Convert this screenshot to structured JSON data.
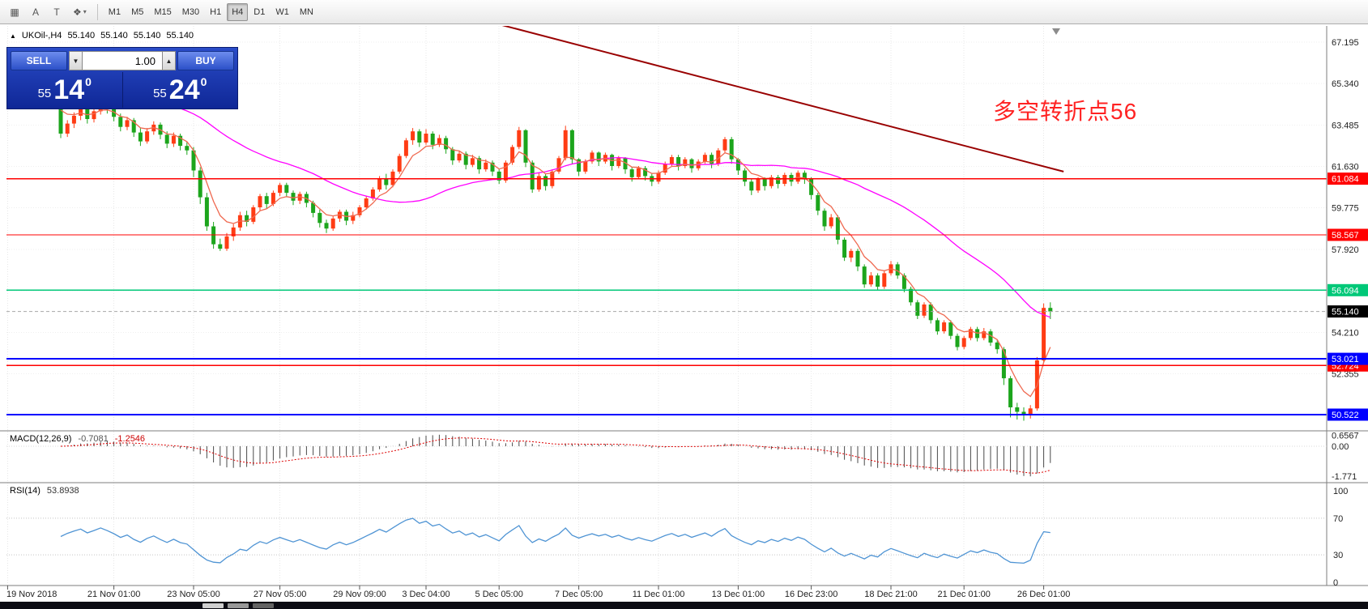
{
  "toolbar": {
    "tools": [
      {
        "name": "templates",
        "glyph": "▦"
      },
      {
        "name": "text",
        "glyph": "A"
      },
      {
        "name": "label",
        "glyph": "T"
      },
      {
        "name": "objects",
        "glyph": "❖"
      }
    ],
    "objects_dropdown_icon": "▾",
    "timeframes": [
      "M1",
      "M5",
      "M15",
      "M30",
      "H1",
      "H4",
      "D1",
      "W1",
      "MN"
    ],
    "active_timeframe": "H4"
  },
  "chart_header": {
    "collapse_icon": "▲",
    "symbol": "UKOil-,H4",
    "open": "55.140",
    "high": "55.140",
    "low": "55.140",
    "close": "55.140"
  },
  "trade_panel": {
    "sell_label": "SELL",
    "buy_label": "BUY",
    "volume": "1.00",
    "volume_down_icon": "▼",
    "volume_up_icon": "▲",
    "sell_price": {
      "small": "55",
      "big": "14",
      "sup": "0"
    },
    "buy_price": {
      "small": "55",
      "big": "24",
      "sup": "0"
    }
  },
  "annotation": {
    "text": "多空转折点56",
    "color": "#ff2222"
  },
  "price_axis": {
    "labels": [
      "67.195",
      "65.340",
      "63.485",
      "61.630",
      "59.775",
      "57.920",
      "56.065",
      "54.210",
      "52.355",
      "50.500"
    ]
  },
  "current_price": {
    "value": "55.140",
    "color": "#000000"
  },
  "levels": [
    {
      "value": "61.084",
      "color": "#ff0000"
    },
    {
      "value": "58.567",
      "color": "#ff0000"
    },
    {
      "value": "56.094",
      "color": "#00c878"
    },
    {
      "value": "52.724",
      "color": "#ff0000"
    },
    {
      "value": "53.021",
      "color": "#0000ff"
    },
    {
      "value": "50.522",
      "color": "#0000ff"
    }
  ],
  "date_axis": [
    {
      "label": "19 Nov 2018",
      "i": -8
    },
    {
      "label": "21 Nov 01:00",
      "i": 8
    },
    {
      "label": "23 Nov 05:00",
      "i": 20
    },
    {
      "label": "27 Nov 05:00",
      "i": 33
    },
    {
      "label": "29 Nov 09:00",
      "i": 45
    },
    {
      "label": "3 Dec 04:00",
      "i": 55
    },
    {
      "label": "5 Dec 05:00",
      "i": 66
    },
    {
      "label": "7 Dec 05:00",
      "i": 78
    },
    {
      "label": "11 Dec 01:00",
      "i": 90
    },
    {
      "label": "13 Dec 01:00",
      "i": 102
    },
    {
      "label": "16 Dec 23:00",
      "i": 113
    },
    {
      "label": "18 Dec 21:00",
      "i": 125
    },
    {
      "label": "21 Dec 01:00",
      "i": 136
    },
    {
      "label": "26 Dec 01:00",
      "i": 148
    }
  ],
  "macd_panel": {
    "title": "MACD(12,26,9)",
    "value_main": "-0.7081",
    "value_signal": "-1.2546",
    "axis": [
      "0.6567",
      "0.00",
      "-1.771"
    ]
  },
  "rsi_panel": {
    "title": "RSI(14)",
    "value": "53.8938",
    "axis": [
      "100",
      "70",
      "30",
      "0"
    ],
    "levels": [
      70,
      30
    ]
  },
  "chart_data": {
    "type": "candlestick",
    "symbol": "UKOil-",
    "timeframe": "H4",
    "up_color": "#ff3c14",
    "down_color": "#1ca51c",
    "overlays": [
      {
        "name": "ma-slow",
        "color": "#ff00ff"
      },
      {
        "name": "ma-fast",
        "color": "#ef6950"
      }
    ],
    "trend_line": {
      "from_index": 62,
      "from_price": 68.3,
      "to_index": 151,
      "to_price": 61.4,
      "color": "#990000"
    },
    "candles": [
      [
        64.5,
        64.75,
        62.9,
        63.1
      ],
      [
        63.1,
        63.7,
        62.95,
        63.55
      ],
      [
        63.55,
        64.05,
        63.35,
        63.9
      ],
      [
        63.9,
        64.35,
        63.7,
        64.2
      ],
      [
        64.2,
        64.3,
        63.55,
        63.75
      ],
      [
        63.75,
        64.25,
        63.6,
        64.1
      ],
      [
        64.1,
        64.65,
        63.95,
        64.5
      ],
      [
        64.5,
        64.85,
        64.0,
        64.2
      ],
      [
        64.2,
        64.35,
        63.65,
        63.85
      ],
      [
        63.85,
        64.0,
        63.2,
        63.4
      ],
      [
        63.4,
        63.85,
        63.25,
        63.7
      ],
      [
        63.7,
        63.8,
        62.95,
        63.15
      ],
      [
        63.15,
        63.35,
        62.55,
        62.75
      ],
      [
        62.75,
        63.35,
        62.65,
        63.2
      ],
      [
        63.2,
        63.65,
        63.05,
        63.5
      ],
      [
        63.5,
        63.6,
        62.85,
        63.05
      ],
      [
        63.05,
        63.2,
        62.45,
        62.65
      ],
      [
        62.65,
        63.15,
        62.5,
        63.0
      ],
      [
        63.0,
        63.1,
        62.35,
        62.55
      ],
      [
        62.55,
        62.75,
        62.15,
        62.35
      ],
      [
        62.35,
        62.5,
        61.15,
        61.45
      ],
      [
        61.45,
        61.6,
        59.95,
        60.25
      ],
      [
        60.25,
        60.45,
        58.75,
        58.95
      ],
      [
        58.95,
        59.15,
        57.95,
        58.15
      ],
      [
        58.15,
        58.4,
        57.85,
        57.95
      ],
      [
        57.95,
        58.65,
        57.85,
        58.5
      ],
      [
        58.5,
        59.05,
        58.3,
        58.9
      ],
      [
        58.9,
        59.6,
        58.75,
        59.45
      ],
      [
        59.45,
        59.65,
        58.95,
        59.15
      ],
      [
        59.15,
        59.9,
        59.05,
        59.8
      ],
      [
        59.8,
        60.4,
        59.65,
        60.3
      ],
      [
        60.3,
        60.45,
        59.75,
        59.95
      ],
      [
        59.95,
        60.55,
        59.85,
        60.45
      ],
      [
        60.45,
        60.9,
        60.3,
        60.8
      ],
      [
        60.8,
        60.9,
        60.25,
        60.45
      ],
      [
        60.45,
        60.55,
        59.9,
        60.1
      ],
      [
        60.1,
        60.5,
        59.95,
        60.4
      ],
      [
        60.4,
        60.5,
        59.8,
        60.0
      ],
      [
        60.0,
        60.1,
        59.35,
        59.55
      ],
      [
        59.55,
        59.7,
        58.9,
        59.1
      ],
      [
        59.1,
        59.25,
        58.65,
        58.85
      ],
      [
        58.85,
        59.4,
        58.75,
        59.3
      ],
      [
        59.3,
        59.7,
        59.15,
        59.6
      ],
      [
        59.6,
        59.7,
        59.0,
        59.2
      ],
      [
        59.2,
        59.6,
        59.05,
        59.45
      ],
      [
        59.45,
        59.9,
        59.35,
        59.8
      ],
      [
        59.8,
        60.3,
        59.7,
        60.2
      ],
      [
        60.2,
        60.7,
        60.1,
        60.6
      ],
      [
        60.6,
        61.2,
        60.5,
        61.1
      ],
      [
        61.1,
        61.3,
        60.6,
        60.8
      ],
      [
        60.8,
        61.5,
        60.7,
        61.4
      ],
      [
        61.4,
        62.2,
        61.3,
        62.1
      ],
      [
        62.1,
        62.9,
        62.0,
        62.8
      ],
      [
        62.8,
        63.35,
        62.6,
        63.2
      ],
      [
        63.2,
        63.3,
        62.5,
        62.7
      ],
      [
        62.7,
        63.3,
        62.6,
        63.1
      ],
      [
        63.1,
        63.2,
        62.4,
        62.6
      ],
      [
        62.6,
        63.05,
        62.5,
        62.9
      ],
      [
        62.9,
        63.0,
        62.2,
        62.4
      ],
      [
        62.4,
        62.5,
        61.7,
        61.9
      ],
      [
        61.9,
        62.35,
        61.8,
        62.2
      ],
      [
        62.2,
        62.3,
        61.5,
        61.7
      ],
      [
        61.7,
        62.15,
        61.6,
        62.0
      ],
      [
        62.0,
        62.1,
        61.3,
        61.5
      ],
      [
        61.5,
        61.95,
        61.4,
        61.8
      ],
      [
        61.8,
        61.9,
        61.2,
        61.4
      ],
      [
        61.4,
        61.5,
        60.85,
        61.0
      ],
      [
        61.0,
        61.9,
        60.9,
        61.8
      ],
      [
        61.8,
        62.6,
        61.7,
        62.5
      ],
      [
        62.5,
        63.4,
        62.4,
        63.25
      ],
      [
        63.25,
        63.3,
        61.6,
        61.8
      ],
      [
        61.8,
        61.9,
        60.45,
        60.6
      ],
      [
        60.6,
        61.35,
        60.5,
        61.2
      ],
      [
        61.2,
        61.3,
        60.55,
        60.75
      ],
      [
        60.75,
        61.5,
        60.65,
        61.4
      ],
      [
        61.4,
        62.1,
        61.3,
        62.0
      ],
      [
        62.0,
        63.45,
        61.9,
        63.25
      ],
      [
        63.25,
        63.3,
        61.75,
        61.95
      ],
      [
        61.95,
        62.0,
        61.2,
        61.4
      ],
      [
        61.4,
        61.95,
        61.3,
        61.85
      ],
      [
        61.85,
        62.35,
        61.75,
        62.25
      ],
      [
        62.25,
        62.3,
        61.65,
        61.85
      ],
      [
        61.85,
        62.25,
        61.75,
        62.15
      ],
      [
        62.15,
        62.2,
        61.45,
        61.65
      ],
      [
        61.65,
        62.1,
        61.55,
        62.0
      ],
      [
        62.0,
        62.05,
        61.3,
        61.5
      ],
      [
        61.5,
        61.6,
        60.95,
        61.15
      ],
      [
        61.15,
        61.65,
        61.05,
        61.55
      ],
      [
        61.55,
        61.65,
        61.0,
        61.2
      ],
      [
        61.2,
        61.3,
        60.75,
        60.95
      ],
      [
        60.95,
        61.45,
        60.85,
        61.35
      ],
      [
        61.35,
        61.85,
        61.25,
        61.75
      ],
      [
        61.75,
        62.15,
        61.65,
        62.05
      ],
      [
        62.05,
        62.15,
        61.45,
        61.65
      ],
      [
        61.65,
        62.05,
        61.55,
        61.95
      ],
      [
        61.95,
        62.0,
        61.35,
        61.55
      ],
      [
        61.55,
        61.95,
        61.45,
        61.85
      ],
      [
        61.85,
        62.25,
        61.75,
        62.15
      ],
      [
        62.15,
        62.25,
        61.55,
        61.75
      ],
      [
        61.75,
        62.45,
        61.65,
        62.35
      ],
      [
        62.35,
        62.95,
        62.25,
        62.85
      ],
      [
        62.85,
        62.95,
        61.75,
        61.95
      ],
      [
        61.95,
        62.0,
        61.25,
        61.45
      ],
      [
        61.45,
        61.55,
        60.75,
        60.95
      ],
      [
        60.95,
        61.05,
        60.35,
        60.55
      ],
      [
        60.55,
        61.15,
        60.45,
        61.05
      ],
      [
        61.05,
        61.15,
        60.55,
        60.75
      ],
      [
        60.75,
        61.25,
        60.65,
        61.15
      ],
      [
        61.15,
        61.25,
        60.65,
        60.85
      ],
      [
        60.85,
        61.35,
        60.75,
        61.25
      ],
      [
        61.25,
        61.35,
        60.75,
        60.95
      ],
      [
        60.95,
        61.45,
        60.85,
        61.35
      ],
      [
        61.35,
        61.45,
        60.85,
        61.05
      ],
      [
        61.05,
        61.15,
        60.15,
        60.35
      ],
      [
        60.35,
        60.45,
        59.45,
        59.65
      ],
      [
        59.65,
        59.75,
        58.75,
        58.95
      ],
      [
        58.95,
        59.5,
        58.85,
        59.35
      ],
      [
        59.35,
        59.45,
        58.15,
        58.35
      ],
      [
        58.35,
        58.45,
        57.4,
        57.55
      ],
      [
        57.55,
        57.95,
        57.35,
        57.85
      ],
      [
        57.85,
        57.95,
        56.95,
        57.15
      ],
      [
        57.15,
        57.25,
        56.2,
        56.35
      ],
      [
        56.35,
        56.9,
        56.25,
        56.75
      ],
      [
        56.75,
        56.85,
        56.1,
        56.25
      ],
      [
        56.25,
        56.95,
        56.15,
        56.85
      ],
      [
        56.85,
        57.4,
        56.75,
        57.25
      ],
      [
        57.25,
        57.35,
        56.6,
        56.75
      ],
      [
        56.75,
        56.85,
        56.0,
        56.15
      ],
      [
        56.15,
        56.25,
        55.4,
        55.55
      ],
      [
        55.55,
        55.65,
        54.8,
        54.95
      ],
      [
        54.95,
        55.55,
        54.85,
        55.45
      ],
      [
        55.45,
        55.55,
        54.6,
        54.75
      ],
      [
        54.75,
        54.85,
        54.1,
        54.25
      ],
      [
        54.25,
        54.75,
        54.15,
        54.65
      ],
      [
        54.65,
        54.75,
        53.9,
        54.05
      ],
      [
        54.05,
        54.15,
        53.4,
        53.55
      ],
      [
        53.55,
        54.05,
        53.45,
        53.95
      ],
      [
        53.95,
        54.45,
        53.85,
        54.35
      ],
      [
        54.35,
        54.45,
        53.8,
        53.95
      ],
      [
        53.95,
        54.4,
        53.85,
        54.25
      ],
      [
        54.25,
        54.35,
        53.6,
        53.75
      ],
      [
        53.75,
        53.85,
        53.25,
        53.45
      ],
      [
        53.45,
        53.55,
        51.85,
        52.15
      ],
      [
        52.15,
        52.25,
        50.4,
        50.85
      ],
      [
        50.85,
        51.05,
        50.3,
        50.65
      ],
      [
        50.65,
        50.85,
        50.25,
        50.5
      ],
      [
        50.5,
        50.95,
        50.35,
        50.8
      ],
      [
        50.8,
        53.1,
        50.7,
        52.95
      ],
      [
        52.95,
        55.5,
        52.85,
        55.3
      ],
      [
        55.3,
        55.55,
        54.8,
        55.14
      ]
    ]
  }
}
